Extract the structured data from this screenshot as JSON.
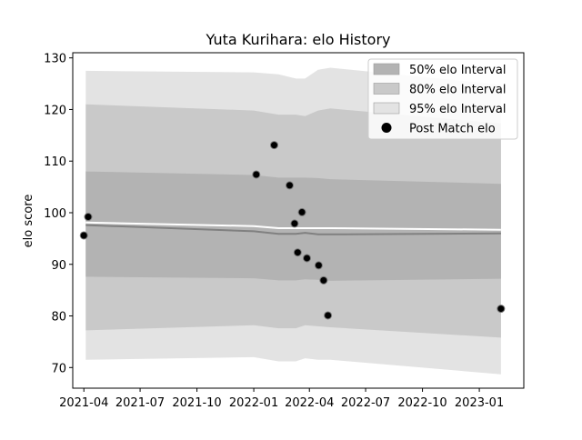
{
  "chart_data": {
    "type": "line",
    "title": "Yuta Kurihara: elo History",
    "xlabel": "",
    "ylabel": "elo score",
    "x_ticks": [
      "2021-04",
      "2021-07",
      "2021-10",
      "2022-01",
      "2022-04",
      "2022-07",
      "2022-10",
      "2023-01"
    ],
    "y_ticks": [
      "70",
      "80",
      "90",
      "100",
      "110",
      "120",
      "130"
    ],
    "xlim": [
      "2021-03-14",
      "2023-03-14"
    ],
    "ylim": [
      66,
      131
    ],
    "grid": false,
    "legend_position": "top-right",
    "legend": [
      {
        "label": "50% elo Interval",
        "color": "#b3b3b3",
        "kind": "patch"
      },
      {
        "label": "80% elo Interval",
        "color": "#c9c9c9",
        "kind": "patch"
      },
      {
        "label": "95% elo Interval",
        "color": "#e3e3e3",
        "kind": "patch"
      },
      {
        "label": "Post Match elo",
        "color": "#000000",
        "kind": "marker"
      }
    ],
    "bands": {
      "x": [
        "2021-04-04",
        "2022-01-01",
        "2022-02-10",
        "2022-03-10",
        "2022-03-25",
        "2022-04-15",
        "2022-05-05",
        "2023-02-05"
      ],
      "interval_95": {
        "lower": [
          71.5,
          72.0,
          71.2,
          71.2,
          71.8,
          71.5,
          71.5,
          68.7
        ],
        "upper": [
          127.5,
          127.2,
          126.8,
          126.0,
          126.0,
          127.7,
          128.1,
          124.8
        ]
      },
      "interval_80": {
        "lower": [
          77.2,
          78.2,
          77.6,
          77.6,
          78.2,
          78.0,
          77.8,
          75.8
        ],
        "upper": [
          121.0,
          119.8,
          119.0,
          119.0,
          118.7,
          119.8,
          120.2,
          117.3
        ]
      },
      "interval_50": {
        "lower": [
          87.6,
          87.3,
          86.9,
          86.9,
          87.1,
          87.0,
          86.8,
          87.2
        ],
        "upper": [
          108.0,
          107.3,
          106.8,
          106.8,
          106.8,
          106.7,
          106.5,
          105.6
        ]
      }
    },
    "series": [
      {
        "x": [
          "2021-04-04",
          "2022-01-01",
          "2022-02-10",
          "2022-03-10",
          "2022-03-25",
          "2022-04-15",
          "2022-05-05",
          "2023-02-05"
        ],
        "values": [
          97.6,
          96.4,
          95.9,
          95.9,
          96.1,
          95.8,
          95.8,
          96.0
        ],
        "color": "#808080"
      },
      {
        "x": [
          "2021-04-04",
          "2022-01-01",
          "2022-02-10",
          "2022-03-10",
          "2022-03-25",
          "2022-04-15",
          "2022-05-05",
          "2023-02-05"
        ],
        "values": [
          98.1,
          97.4,
          97.0,
          97.0,
          97.0,
          97.0,
          97.0,
          96.7
        ],
        "color": "#ffffff"
      }
    ],
    "points": {
      "name": "Post Match elo",
      "x": [
        "2021-04-01",
        "2021-04-08",
        "2022-01-05",
        "2022-02-03",
        "2022-02-28",
        "2022-03-08",
        "2022-03-13",
        "2022-03-20",
        "2022-03-28",
        "2022-04-16",
        "2022-04-24",
        "2022-05-01",
        "2023-02-05"
      ],
      "values": [
        95.6,
        99.2,
        107.4,
        113.1,
        105.3,
        97.9,
        92.3,
        100.1,
        91.2,
        89.8,
        86.9,
        80.1,
        81.4
      ]
    }
  }
}
